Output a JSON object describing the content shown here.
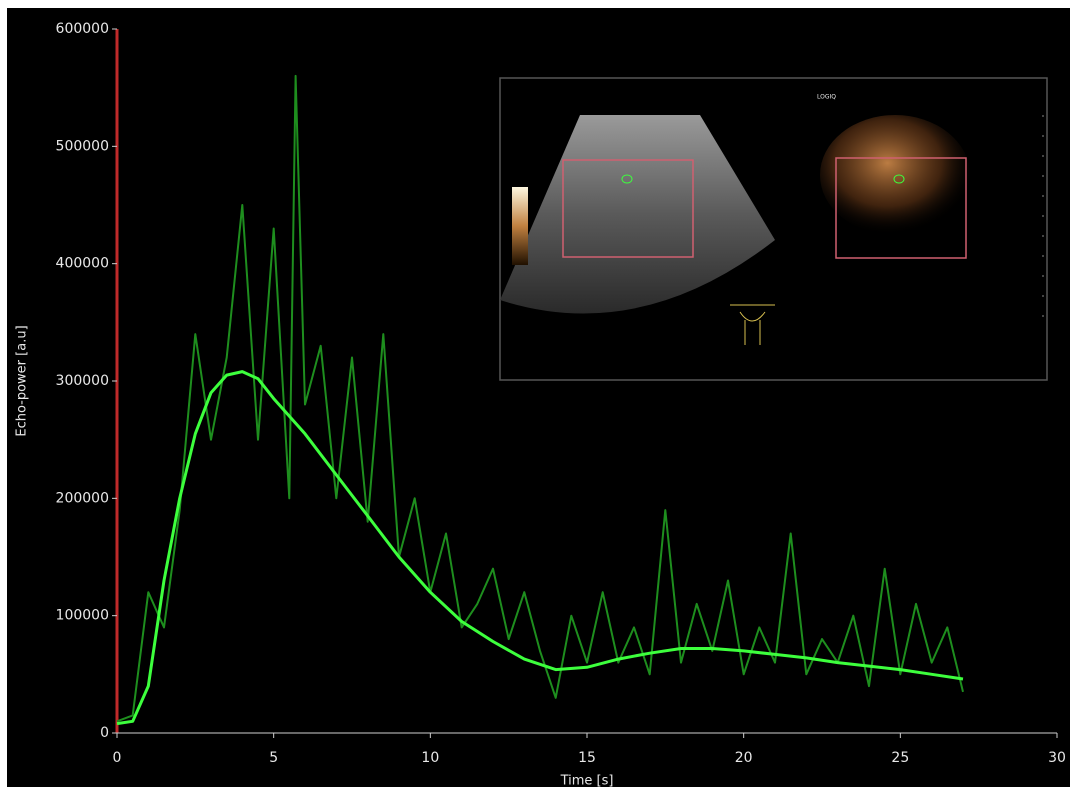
{
  "chart_data": {
    "type": "line",
    "x_label": "Time [s]",
    "y_label": "Echo-power [a.u]",
    "xlim": [
      0,
      30
    ],
    "xticks": [
      0,
      5,
      10,
      15,
      20,
      25,
      30
    ],
    "ylim": [
      0,
      600000
    ],
    "yticks": [
      0,
      100000,
      200000,
      300000,
      400000,
      500000,
      600000
    ],
    "grid": false,
    "inset_label": "LOGIQ",
    "series": [
      {
        "color": "#1e8e1e",
        "x": [
          0,
          0.5,
          1,
          1.5,
          2,
          2.5,
          3,
          3.5,
          4,
          4.5,
          5,
          5.5,
          5.7,
          6,
          6.5,
          7,
          7.5,
          8,
          8.5,
          9,
          9.5,
          10,
          10.5,
          11,
          11.5,
          12,
          12.5,
          13,
          13.5,
          14,
          14.5,
          15,
          15.5,
          16,
          16.5,
          17,
          17.5,
          18,
          18.5,
          19,
          19.5,
          20,
          20.5,
          21,
          21.5,
          22,
          22.5,
          23,
          23.5,
          24,
          24.5,
          25,
          25.5,
          26,
          26.5,
          27
        ],
        "values": [
          10000,
          15000,
          120000,
          90000,
          190000,
          340000,
          250000,
          320000,
          450000,
          250000,
          430000,
          200000,
          560000,
          280000,
          330000,
          200000,
          320000,
          180000,
          340000,
          150000,
          200000,
          120000,
          170000,
          90000,
          110000,
          140000,
          80000,
          120000,
          70000,
          30000,
          100000,
          60000,
          120000,
          60000,
          90000,
          50000,
          190000,
          60000,
          110000,
          70000,
          130000,
          50000,
          90000,
          60000,
          170000,
          50000,
          80000,
          60000,
          100000,
          40000,
          140000,
          50000,
          110000,
          60000,
          90000,
          35000
        ]
      },
      {
        "color": "#3dff3d",
        "x": [
          0,
          0.5,
          1,
          1.5,
          2,
          2.5,
          3,
          3.5,
          4,
          4.5,
          5,
          6,
          7,
          8,
          9,
          10,
          11,
          12,
          13,
          14,
          15,
          16,
          17,
          18,
          19,
          20,
          21,
          22,
          23,
          24,
          25,
          26,
          27
        ],
        "values": [
          8000,
          10000,
          40000,
          130000,
          200000,
          255000,
          290000,
          305000,
          308000,
          302000,
          285000,
          255000,
          220000,
          185000,
          150000,
          120000,
          95000,
          78000,
          63000,
          54000,
          56000,
          63000,
          68000,
          72000,
          72000,
          70000,
          67000,
          64000,
          60000,
          57000,
          54000,
          50000,
          46000
        ]
      }
    ]
  }
}
